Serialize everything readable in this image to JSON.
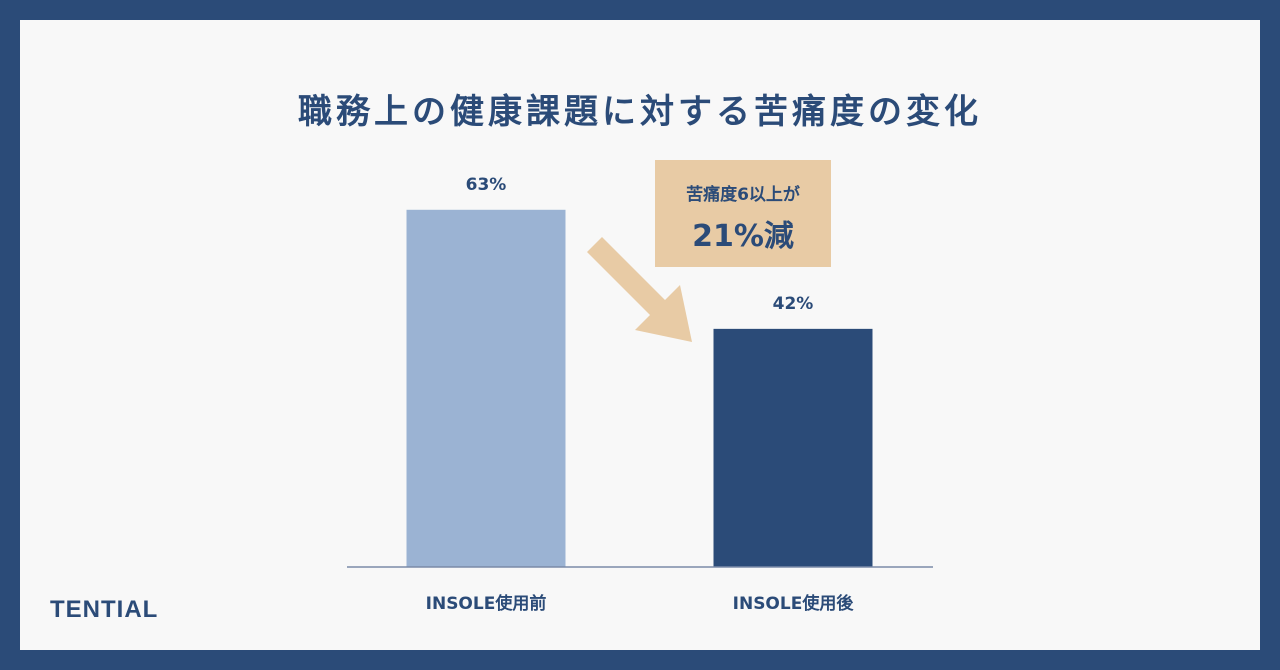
{
  "chart_data": {
    "type": "bar",
    "title": "職務上の健康課題に対する苦痛度の変化",
    "categories": [
      "INSOLE使用前",
      "INSOLE使用後"
    ],
    "values": [
      63,
      42
    ],
    "value_labels": [
      "63%",
      "42%"
    ],
    "bar_colors": [
      "#9bb3d3",
      "#2b4b78"
    ],
    "unit": "%",
    "ylim": [
      0,
      100
    ],
    "grid": false,
    "annotation": {
      "line1": "苦痛度6以上が",
      "line2": "21%減",
      "color": "#e8cba5"
    }
  },
  "brand": {
    "logo_text": "TENTIAL"
  },
  "colors": {
    "background": "#2b4b78",
    "panel": "#f8f8f8",
    "text": "#2b4b78",
    "baseline": "#7a8aa8"
  }
}
